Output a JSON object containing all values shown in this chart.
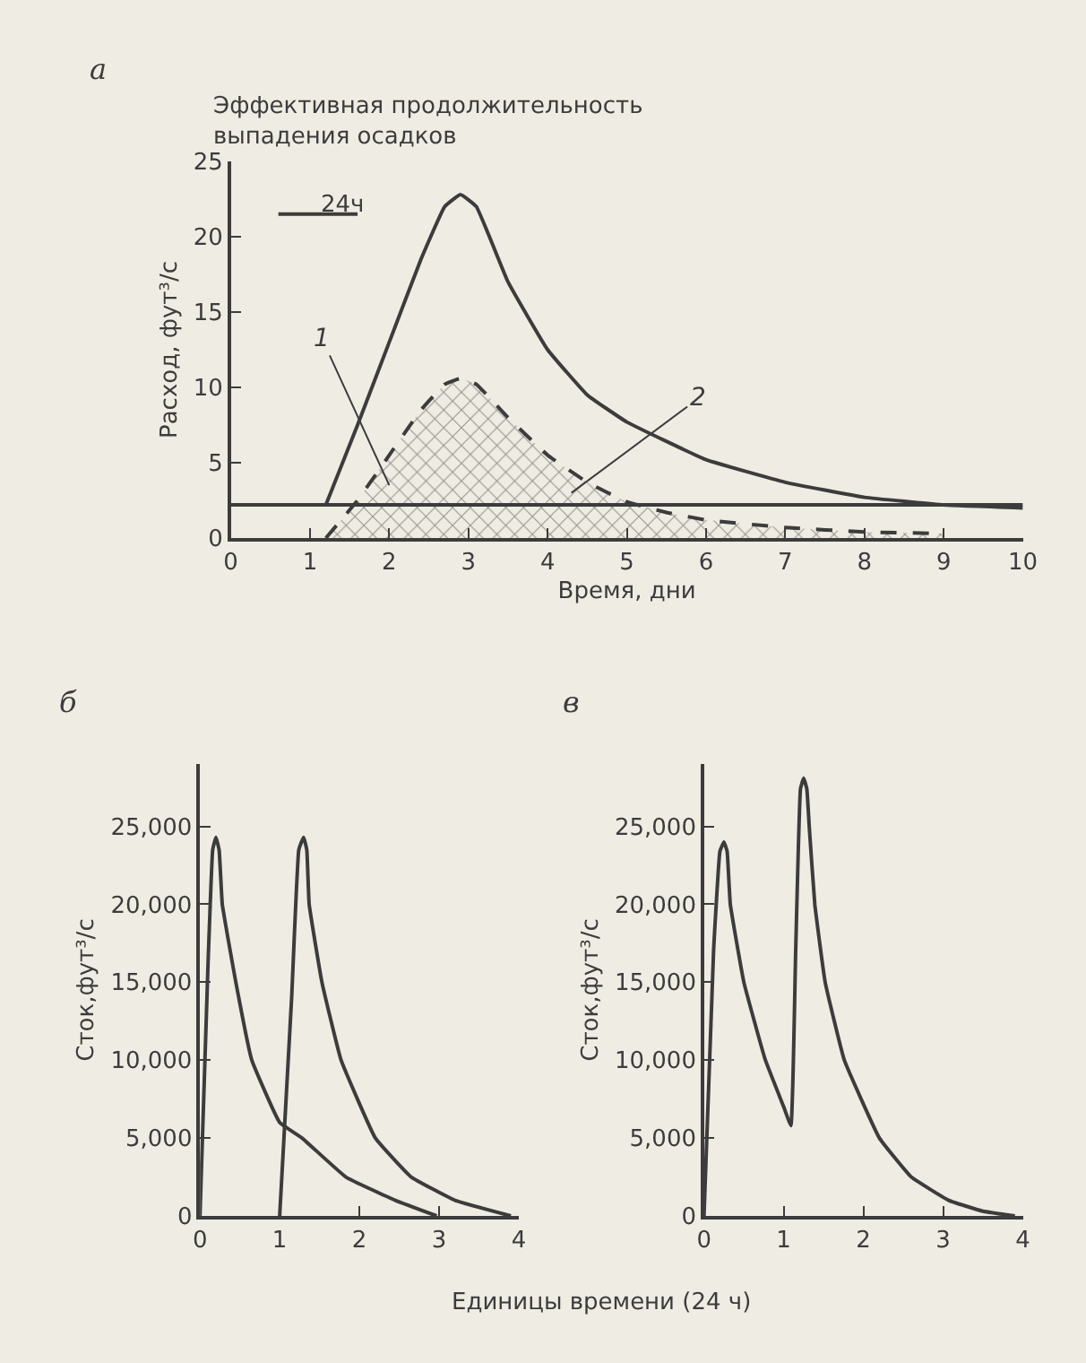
{
  "chart_data": [
    {
      "type": "line",
      "title": "а",
      "xlabel": "Время, дни",
      "ylabel": "Расход, фут³/с",
      "xlim": [
        0,
        10
      ],
      "ylim": [
        0,
        25
      ],
      "xticks": [
        0,
        1,
        2,
        3,
        4,
        5,
        6,
        7,
        8,
        9,
        10
      ],
      "yticks": [
        0,
        5,
        10,
        15,
        20,
        25
      ],
      "grid": false,
      "marker": "none",
      "annotations": [
        "Эффективная продолжительность\nвыпадения осадков",
        "24ч",
        "1",
        "2"
      ],
      "series": [
        {
          "type": "area",
          "color": "#3c3c3c",
          "line_style": "dashed",
          "x": [
            1.2,
            1.6,
            2.0,
            2.4,
            2.7,
            2.9,
            3.1,
            3.5,
            4.0,
            4.5,
            5.0,
            5.5,
            6.0,
            7.0,
            8.0,
            9.0
          ],
          "values": [
            0,
            2.5,
            5.5,
            8.5,
            10.2,
            10.6,
            10.2,
            8.0,
            5.5,
            3.7,
            2.4,
            1.7,
            1.2,
            0.7,
            0.4,
            0.3
          ]
        },
        {
          "type": "line",
          "color": "#3c3c3c",
          "line_style": "solid",
          "x": [
            1.2,
            1.6,
            2.0,
            2.4,
            2.7,
            2.9,
            3.1,
            3.5,
            4.0,
            4.5,
            5.0,
            6.0,
            7.0,
            8.0,
            9.0,
            10.0
          ],
          "values": [
            2.2,
            7.5,
            13.0,
            18.5,
            22.0,
            22.8,
            22.0,
            17.0,
            12.5,
            9.5,
            7.7,
            5.2,
            3.7,
            2.7,
            2.2,
            2.0
          ]
        },
        {
          "type": "line",
          "color": "#3c3c3c",
          "line_style": "solid",
          "x": [
            0,
            10
          ],
          "values": [
            2.2,
            2.2
          ]
        },
        {
          "type": "line",
          "color": "#3c3c3c",
          "line_style": "solid",
          "x": [
            0.6,
            1.6
          ],
          "values": [
            21.5,
            21.5
          ]
        }
      ]
    },
    {
      "type": "line",
      "title": "б",
      "xlabel": "Единицы времени (24 ч)",
      "ylabel": "Сток,фут³/с",
      "xlim": [
        0,
        4
      ],
      "ylim": [
        0,
        29000
      ],
      "xticks": [
        0,
        1,
        2,
        3,
        4
      ],
      "yticks": [
        {
          "value": 0,
          "label": "0"
        },
        {
          "value": 5000,
          "label": "5,000"
        },
        {
          "value": 10000,
          "label": "10,000"
        },
        {
          "value": 15000,
          "label": "15,000"
        },
        {
          "value": 20000,
          "label": "20,000"
        },
        {
          "value": 25000,
          "label": "25,000"
        }
      ],
      "grid": false,
      "marker": "none",
      "series": [
        {
          "color": "#3c3c3c",
          "x": [
            0,
            0.1,
            0.16,
            0.2,
            0.24,
            0.28,
            0.45,
            0.65,
            1.0,
            1.28,
            1.83,
            2.45,
            2.97
          ],
          "values": [
            0,
            16000,
            23500,
            24300,
            23500,
            20000,
            15000,
            10000,
            6000,
            5000,
            2500,
            1000,
            0
          ]
        },
        {
          "color": "#3c3c3c",
          "x": [
            1.0,
            1.15,
            1.24,
            1.3,
            1.34,
            1.37,
            1.53,
            1.77,
            2.2,
            2.65,
            3.2,
            3.9
          ],
          "values": [
            0,
            14000,
            23500,
            24300,
            23500,
            20000,
            15000,
            10000,
            5000,
            2500,
            1000,
            0
          ]
        }
      ]
    },
    {
      "type": "line",
      "title": "в",
      "ylabel": "Сток,фут³/с",
      "xlim": [
        0,
        4
      ],
      "ylim": [
        0,
        29000
      ],
      "xticks": [
        0,
        1,
        2,
        3,
        4
      ],
      "yticks": [
        {
          "value": 0,
          "label": "0"
        },
        {
          "value": 5000,
          "label": "5,000"
        },
        {
          "value": 10000,
          "label": "10,000"
        },
        {
          "value": 15000,
          "label": "15,000"
        },
        {
          "value": 20000,
          "label": "20,000"
        },
        {
          "value": 25000,
          "label": "25,000"
        }
      ],
      "grid": false,
      "marker": "none",
      "series": [
        {
          "color": "#3c3c3c",
          "x": [
            0,
            0.12,
            0.2,
            0.25,
            0.29,
            0.33,
            0.5,
            0.77,
            1.0,
            1.09,
            1.15,
            1.21,
            1.25,
            1.29,
            1.32,
            1.39,
            1.52,
            1.76,
            2.2,
            2.6,
            3.07,
            3.5,
            3.9
          ],
          "values": [
            0,
            17000,
            23400,
            24000,
            23400,
            20000,
            15000,
            10000,
            7000,
            5800,
            17000,
            27400,
            28100,
            27400,
            25000,
            20000,
            15000,
            10000,
            5000,
            2500,
            1000,
            300,
            0
          ]
        }
      ]
    }
  ]
}
